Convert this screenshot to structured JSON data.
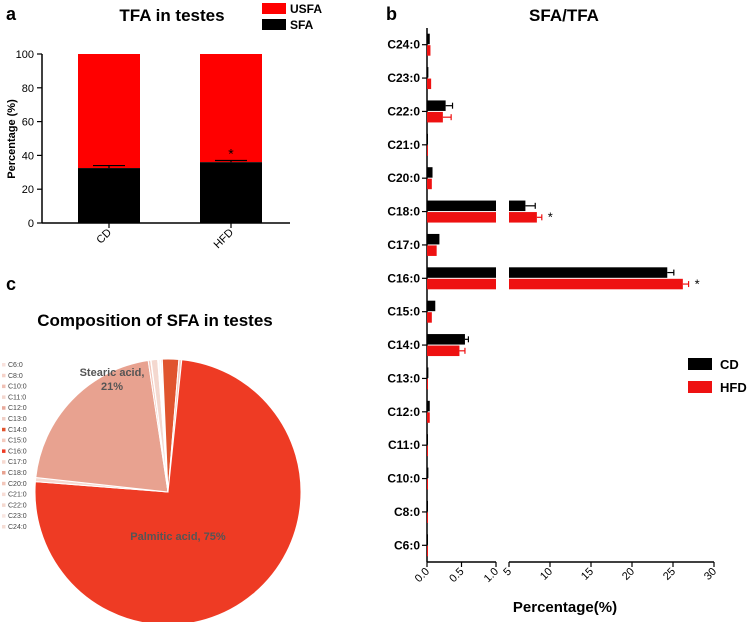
{
  "panels": {
    "a": {
      "letter": "a"
    },
    "b": {
      "letter": "b"
    },
    "c": {
      "letter": "c"
    }
  },
  "colors": {
    "cd": "#000000",
    "hfd": "#ee1111",
    "usfa": "#ff0000",
    "sfa": "#000000"
  },
  "chart_data": [
    {
      "id": "a",
      "type": "bar",
      "stacked": true,
      "title": "TFA in testes",
      "ylabel": "Percentage (%)",
      "xlabel": "",
      "ylim": [
        0,
        100
      ],
      "yticks": [
        0,
        20,
        40,
        60,
        80,
        100
      ],
      "categories": [
        "CD",
        "HFD"
      ],
      "series": [
        {
          "name": "SFA",
          "values": [
            32.5,
            36
          ],
          "errors": [
            1.5,
            1
          ]
        },
        {
          "name": "USFA",
          "values": [
            67.5,
            64
          ]
        }
      ],
      "legend": [
        "USFA",
        "SFA"
      ],
      "annotations": [
        {
          "category": "HFD",
          "text": "*"
        }
      ]
    },
    {
      "id": "b",
      "type": "bar",
      "orientation": "horizontal",
      "title": "SFA/TFA",
      "xlabel": "Percentage(%)",
      "categories": [
        "C24:0",
        "C23:0",
        "C22:0",
        "C21:0",
        "C20:0",
        "C18:0",
        "C17:0",
        "C16:0",
        "C15:0",
        "C14:0",
        "C13:0",
        "C12:0",
        "C11:0",
        "C10:0",
        "C8:0",
        "C6:0"
      ],
      "series": [
        {
          "name": "CD",
          "values": [
            0.04,
            0.02,
            0.27,
            0.01,
            0.08,
            7.0,
            0.18,
            24.3,
            0.12,
            0.55,
            0.02,
            0.04,
            0.01,
            0.02,
            0.005,
            0.005
          ],
          "errors": [
            0.005,
            0.005,
            0.1,
            0.005,
            0.01,
            1.2,
            0.02,
            0.8,
            0.02,
            0.05,
            0.005,
            0.01,
            0.005,
            0.005,
            0.002,
            0.002
          ]
        },
        {
          "name": "HFD",
          "values": [
            0.05,
            0.06,
            0.23,
            0.01,
            0.07,
            8.4,
            0.14,
            26.2,
            0.07,
            0.47,
            0.01,
            0.04,
            0.01,
            0.01,
            0.005,
            0.005
          ],
          "errors": [
            0.005,
            0.01,
            0.12,
            0.005,
            0.01,
            0.6,
            0.02,
            0.7,
            0.01,
            0.08,
            0.005,
            0.01,
            0.005,
            0.005,
            0.002,
            0.002
          ]
        }
      ],
      "axis_break": {
        "segment1": [
          0,
          1.0
        ],
        "segment2": [
          5,
          30
        ]
      },
      "xticks_segment1": [
        "0.0",
        "0.5",
        "1.0"
      ],
      "xticks_segment2": [
        "5",
        "10",
        "15",
        "20",
        "25",
        "30"
      ],
      "annotations": [
        {
          "category": "C18:0",
          "text": "*"
        },
        {
          "category": "C16:0",
          "text": "*"
        }
      ],
      "legend": [
        "CD",
        "HFD"
      ]
    },
    {
      "id": "c",
      "type": "pie",
      "title": "Composition of SFA in testes",
      "labels": [
        "C6:0",
        "C8:0",
        "C10:0",
        "C11:0",
        "C12:0",
        "C13:0",
        "C14:0",
        "C15:0",
        "C16:0",
        "C17:0",
        "C18:0",
        "C20:0",
        "C21:0",
        "C22:0",
        "C23:0",
        "C24:0"
      ],
      "values": [
        0.02,
        0.02,
        0.05,
        0.02,
        0.15,
        0.05,
        2.0,
        0.35,
        75,
        0.5,
        21,
        0.3,
        0.05,
        0.8,
        0.1,
        0.15
      ],
      "colors": [
        "#f8e1dc",
        "#f5d2c9",
        "#f0c0b5",
        "#f3d6ce",
        "#e8a99b",
        "#f0cfc6",
        "#e0542e",
        "#f4cbbf",
        "#ee3b24",
        "#f6d9d0",
        "#e8a290",
        "#f2c6ba",
        "#f7dcd5",
        "#f4d8cf",
        "#f9e6e1",
        "#f5dcd4"
      ],
      "slice_labels": [
        {
          "label": "C16:0",
          "text": "Palmitic acid, 75%"
        },
        {
          "label": "C18:0",
          "line1": "Stearic acid,",
          "line2": "21%"
        }
      ]
    }
  ]
}
